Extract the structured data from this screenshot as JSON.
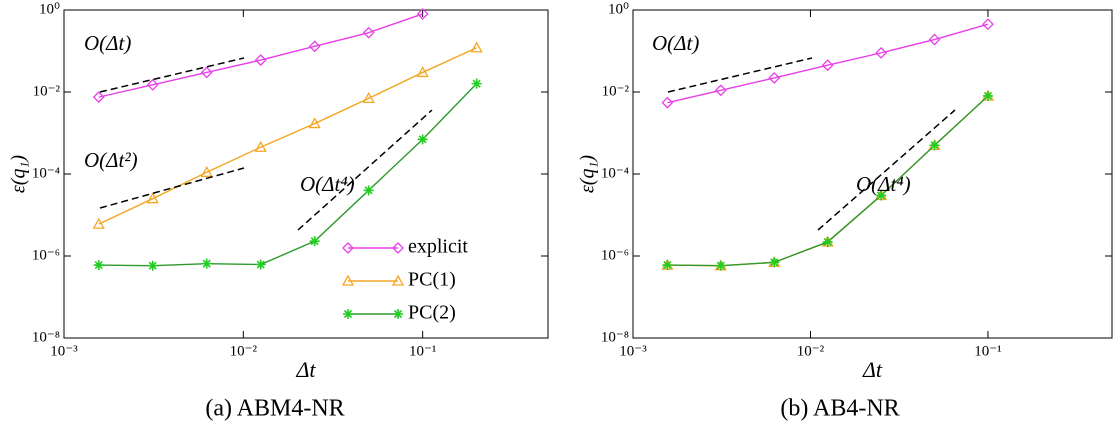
{
  "chart_data": [
    {
      "type": "line",
      "title": "(a) ABM4-NR",
      "xlabel": "Δt",
      "ylabel": "ε(q₁)",
      "log_x": true,
      "log_y": true,
      "legend": "lower right",
      "x": [
        0.0015625,
        0.003125,
        0.00625,
        0.0125,
        0.025,
        0.05,
        0.1,
        0.2
      ],
      "series": [
        {
          "name": "explicit",
          "color": "#e83ee8",
          "marker": "diamond",
          "values": [
            0.0075,
            0.015,
            0.03,
            0.06,
            0.13,
            0.28,
            0.8,
            null
          ]
        },
        {
          "name": "PC(1)",
          "color": "#f5a623",
          "marker": "triangle",
          "values": [
            6e-06,
            2.5e-05,
            0.00011,
            0.00045,
            0.0017,
            0.007,
            0.03,
            0.12
          ]
        },
        {
          "name": "PC(2)",
          "color": "#2e9a2e",
          "marker": "star",
          "values": [
            6e-07,
            5.8e-07,
            6.5e-07,
            6.2e-07,
            2.3e-06,
            4e-05,
            0.0007,
            0.016
          ]
        }
      ],
      "xlim": [
        0.001,
        0.5
      ],
      "ylim": [
        1e-08,
        1
      ],
      "xticks": [
        {
          "value": 0.001,
          "label": "10⁻³"
        },
        {
          "value": 0.01,
          "label": "10⁻²"
        },
        {
          "value": 0.1,
          "label": "10⁻¹"
        }
      ],
      "yticks": [
        {
          "value": 1e-08,
          "label": "10⁻⁸"
        },
        {
          "value": 1e-06,
          "label": "10⁻⁶"
        },
        {
          "value": 0.0001,
          "label": "10⁻⁴"
        },
        {
          "value": 0.01,
          "label": "10⁻²"
        },
        {
          "value": 1,
          "label": "10⁰"
        }
      ],
      "annotations": [
        "O(Δt)",
        "O(Δt²)",
        "O(Δt⁴)"
      ]
    },
    {
      "type": "line",
      "title": "(b) AB4-NR",
      "xlabel": "Δt",
      "ylabel": "ε(q₁)",
      "log_x": true,
      "log_y": true,
      "x": [
        0.0015625,
        0.003125,
        0.00625,
        0.0125,
        0.025,
        0.05,
        0.1
      ],
      "series": [
        {
          "name": "explicit",
          "color": "#e83ee8",
          "marker": "diamond",
          "values": [
            0.0055,
            0.011,
            0.022,
            0.045,
            0.09,
            0.19,
            0.45
          ]
        },
        {
          "name": "PC(1)",
          "color": "#f5a623",
          "marker": "triangle",
          "values": [
            6e-07,
            5.8e-07,
            7e-07,
            2.2e-06,
            3e-05,
            0.0005,
            0.008
          ]
        },
        {
          "name": "PC(2)",
          "color": "#2e9a2e",
          "marker": "star",
          "values": [
            6e-07,
            5.8e-07,
            7e-07,
            2.2e-06,
            3e-05,
            0.0005,
            0.008
          ]
        }
      ],
      "xlim": [
        0.001,
        0.5
      ],
      "ylim": [
        1e-08,
        1
      ],
      "xticks": [
        {
          "value": 0.001,
          "label": "10⁻³"
        },
        {
          "value": 0.01,
          "label": "10⁻²"
        },
        {
          "value": 0.1,
          "label": "10⁻¹"
        }
      ],
      "yticks": [
        {
          "value": 1e-08,
          "label": "10⁻⁸"
        },
        {
          "value": 1e-06,
          "label": "10⁻⁶"
        },
        {
          "value": 0.0001,
          "label": "10⁻⁴"
        },
        {
          "value": 0.01,
          "label": "10⁻²"
        },
        {
          "value": 1,
          "label": "10⁰"
        }
      ],
      "annotations": [
        "O(Δt)",
        "O(Δt⁴)"
      ]
    }
  ]
}
